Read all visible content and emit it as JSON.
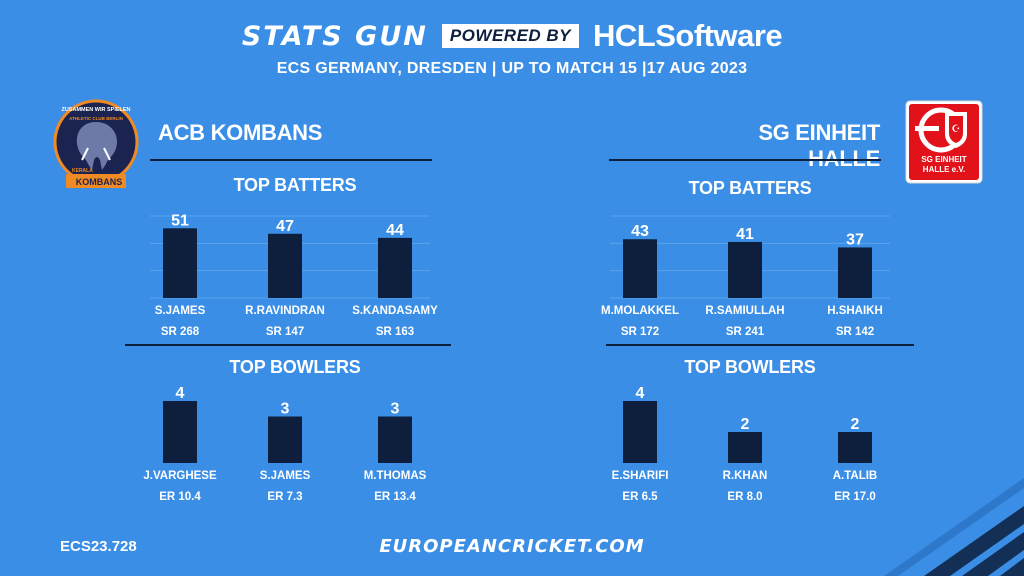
{
  "header": {
    "brand": "STATS GUN",
    "powered_by": "POWERED BY",
    "sponsor": "HCLSoftware",
    "subtitle": "ECS GERMANY, DRESDEN | UP TO MATCH 15 |17 AUG 2023"
  },
  "teams": [
    {
      "name": "ACB KOMBANS",
      "logo_text_top": "ZUSAMMEN WIR SPIELEN",
      "logo_text_mid": "ATHLETIC CLUB BERLIN",
      "logo_text_small": "KERALA",
      "logo_text_bottom": "KOMBANS"
    },
    {
      "name": "SG EINHEIT HALLE",
      "logo_text_1": "SG EINHEIT",
      "logo_text_2": "HALLE e.V."
    }
  ],
  "sections": {
    "batters": "TOP BATTERS",
    "bowlers": "TOP BOWLERS"
  },
  "chart_data": [
    {
      "type": "bar",
      "team": "ACB KOMBANS",
      "section": "TOP BATTERS",
      "categories": [
        "S.JAMES",
        "R.RAVINDRAN",
        "S.KANDASAMY"
      ],
      "values": [
        51,
        47,
        44
      ],
      "sublabels": [
        "SR 268",
        "SR 147",
        "SR 163"
      ],
      "ylim": [
        0,
        60
      ]
    },
    {
      "type": "bar",
      "team": "SG EINHEIT HALLE",
      "section": "TOP BATTERS",
      "categories": [
        "M.MOLAKKEL",
        "R.SAMIULLAH",
        "H.SHAIKH"
      ],
      "values": [
        43,
        41,
        37
      ],
      "sublabels": [
        "SR 172",
        "SR 241",
        "SR 142"
      ],
      "ylim": [
        0,
        60
      ]
    },
    {
      "type": "bar",
      "team": "ACB KOMBANS",
      "section": "TOP BOWLERS",
      "categories": [
        "J.VARGHESE",
        "S.JAMES",
        "M.THOMAS"
      ],
      "values": [
        4,
        3,
        3
      ],
      "sublabels": [
        "ER 10.4",
        "ER 7.3",
        "ER 13.4"
      ],
      "ylim": [
        0,
        4
      ]
    },
    {
      "type": "bar",
      "team": "SG EINHEIT HALLE",
      "section": "TOP BOWLERS",
      "categories": [
        "E.SHARIFI",
        "R.KHAN",
        "A.TALIB"
      ],
      "values": [
        4,
        2,
        2
      ],
      "sublabels": [
        "ER 6.5",
        "ER 8.0",
        "ER 17.0"
      ],
      "ylim": [
        0,
        4
      ]
    }
  ],
  "footer": {
    "code": "ECS23.728",
    "website": "EUROPEANCRICKET.COM"
  },
  "colors": {
    "background": "#3a8ee6",
    "bar": "#0d1f3c",
    "text": "#ffffff"
  }
}
